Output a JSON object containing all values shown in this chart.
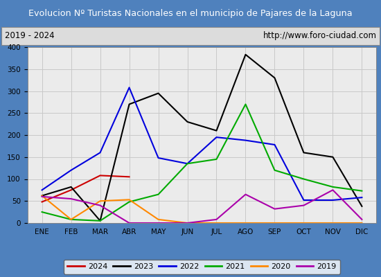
{
  "title": "Evolucion Nº Turistas Nacionales en el municipio de Pajares de la Laguna",
  "subtitle_left": "2019 - 2024",
  "subtitle_right": "http://www.foro-ciudad.com",
  "months": [
    "ENE",
    "FEB",
    "MAR",
    "ABR",
    "MAY",
    "JUN",
    "JUL",
    "AGO",
    "SEP",
    "OCT",
    "NOV",
    "DIC"
  ],
  "series": {
    "2024": {
      "color": "#cc0000",
      "data": [
        48,
        75,
        108,
        105,
        null,
        null,
        null,
        null,
        null,
        null,
        null,
        null
      ]
    },
    "2023": {
      "color": "#000000",
      "data": [
        62,
        82,
        5,
        270,
        295,
        230,
        210,
        383,
        330,
        160,
        150,
        38
      ]
    },
    "2022": {
      "color": "#0000dd",
      "data": [
        75,
        120,
        160,
        308,
        148,
        135,
        195,
        188,
        178,
        52,
        52,
        58
      ]
    },
    "2021": {
      "color": "#00aa00",
      "data": [
        25,
        8,
        5,
        48,
        65,
        135,
        145,
        270,
        120,
        100,
        82,
        73
      ]
    },
    "2020": {
      "color": "#ff8800",
      "data": [
        62,
        8,
        50,
        53,
        8,
        0,
        0,
        0,
        0,
        0,
        0,
        0
      ]
    },
    "2019": {
      "color": "#aa00aa",
      "data": [
        60,
        55,
        40,
        0,
        0,
        0,
        8,
        65,
        32,
        40,
        75,
        8
      ]
    }
  },
  "ylim": [
    0,
    400
  ],
  "yticks": [
    0,
    50,
    100,
    150,
    200,
    250,
    300,
    350,
    400
  ],
  "title_bg_color": "#4f81bd",
  "title_font_color": "#ffffff",
  "subtitle_bg_color": "#dcdcdc",
  "plot_bg_color": "#ebebeb",
  "grid_color": "#c8c8c8",
  "outer_bg_color": "#4f81bd",
  "fig_width": 5.5,
  "fig_height": 4.0,
  "dpi": 100
}
